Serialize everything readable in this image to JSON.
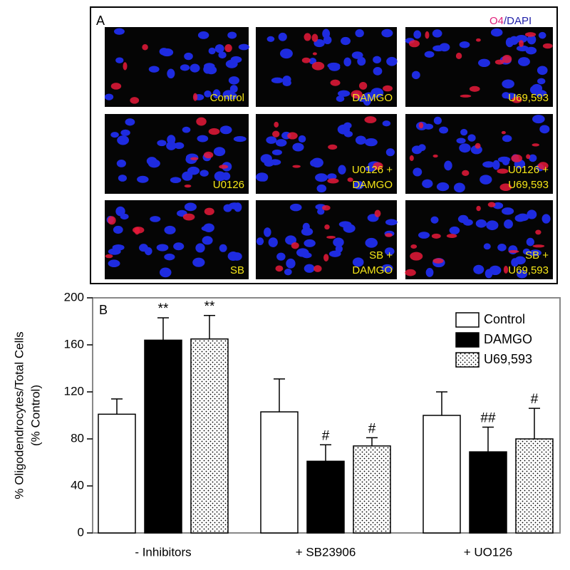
{
  "panel_a": {
    "label": "A",
    "legend": [
      "O4",
      "/DAPI"
    ],
    "images": [
      [
        "Control"
      ],
      [
        "DAMGO"
      ],
      [
        "U69,593"
      ],
      [
        "U0126"
      ],
      [
        "U0126 +",
        "DAMGO"
      ],
      [
        "U0126 +",
        "U69,593"
      ],
      [
        "SB"
      ],
      [
        "SB +",
        "DAMGO"
      ],
      [
        "SB +",
        "U69,593"
      ]
    ]
  },
  "chart_data": {
    "type": "bar",
    "panel_label": "B",
    "y_label": [
      "% Oligodendrocytes/Total Cells",
      "(% Control)"
    ],
    "categories": [
      "- Inhibitors",
      "+ SB23906",
      "+ UO126"
    ],
    "ylim": [
      0,
      200
    ],
    "yticks": [
      0,
      40,
      80,
      120,
      160,
      200
    ],
    "legend_position": "upper right",
    "series": [
      {
        "name": "Control",
        "color": "#ffffff",
        "fill": "solid",
        "values": [
          101,
          103,
          100
        ],
        "errors": [
          13,
          28,
          20
        ],
        "significance": [
          null,
          null,
          null
        ]
      },
      {
        "name": "DAMGO",
        "color": "#000000",
        "fill": "solid",
        "values": [
          164,
          61,
          69
        ],
        "errors": [
          19,
          14,
          21
        ],
        "significance": [
          "**",
          "#",
          "##"
        ]
      },
      {
        "name": "U69,593",
        "color": "#ffffff",
        "fill": "dots",
        "values": [
          165,
          74,
          80
        ],
        "errors": [
          20,
          7,
          26
        ],
        "significance": [
          "**",
          "#",
          "#"
        ]
      }
    ]
  }
}
